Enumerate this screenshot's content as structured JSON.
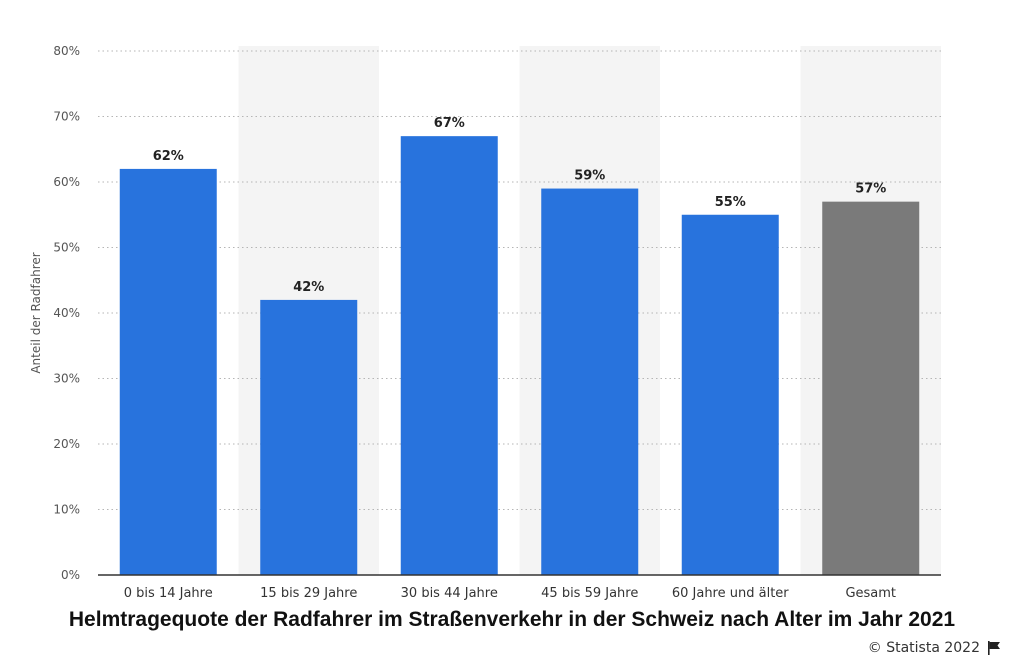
{
  "chart_data": {
    "type": "bar",
    "title": "Helmtragequote der Radfahrer im Straßenverkehr in der Schweiz nach Alter im Jahr 2021",
    "xlabel": "",
    "ylabel": "Anteil der Radfahrer",
    "categories": [
      "0 bis 14 Jahre",
      "15 bis 29 Jahre",
      "30 bis 44 Jahre",
      "45 bis 59 Jahre",
      "60 Jahre und älter",
      "Gesamt"
    ],
    "values": [
      62,
      42,
      67,
      59,
      55,
      57
    ],
    "data_labels": [
      "62%",
      "42%",
      "67%",
      "59%",
      "55%",
      "57%"
    ],
    "bar_colors": [
      "#2873dd",
      "#2873dd",
      "#2873dd",
      "#2873dd",
      "#2873dd",
      "#7a7a7a"
    ],
    "ylim": [
      0,
      80
    ],
    "yticks": [
      0,
      10,
      20,
      30,
      40,
      50,
      60,
      70,
      80
    ],
    "ytick_labels": [
      "0%",
      "10%",
      "20%",
      "30%",
      "40%",
      "50%",
      "60%",
      "70%",
      "80%"
    ],
    "grid": true,
    "legend": "none"
  },
  "footer": {
    "copyright": "© Statista 2022"
  },
  "icons": {
    "flag": "flag-icon"
  }
}
